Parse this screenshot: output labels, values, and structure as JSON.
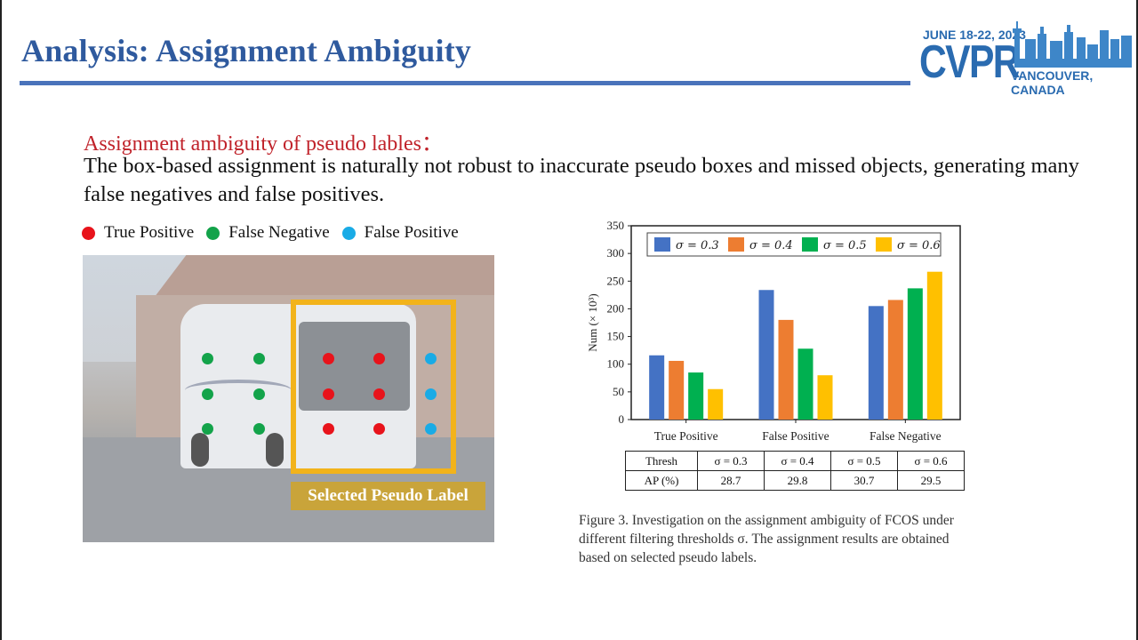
{
  "slide": {
    "title": "Analysis: Assignment Ambiguity",
    "accent_color": "#2f5a9e",
    "rule_color": "#4a73bb"
  },
  "logo": {
    "date": "JUNE 18-22, 2023",
    "name": "CVPR",
    "location": "VANCOUVER, CANADA",
    "color": "#2a6bb0"
  },
  "content": {
    "subheading": "Assignment ambiguity of pseudo lables：",
    "body": "The box-based assignment is naturally not robust to inaccurate pseudo boxes and missed objects, generating many false negatives and false positives."
  },
  "point_legend": [
    {
      "label": "True Positive",
      "color": "#e8131b"
    },
    {
      "label": "False Negative",
      "color": "#13a34a"
    },
    {
      "label": "False Positive",
      "color": "#19abe6"
    }
  ],
  "figure_image": {
    "box_label": "Selected Pseudo Label",
    "box_color": "#f2b31b",
    "points": {
      "true_positive": [
        [
          276,
          116
        ],
        [
          333,
          116
        ],
        [
          276,
          156
        ],
        [
          333,
          156
        ],
        [
          276,
          195
        ],
        [
          333,
          195
        ]
      ],
      "false_negative": [
        [
          140,
          116
        ],
        [
          198,
          116
        ],
        [
          140,
          156
        ],
        [
          198,
          156
        ],
        [
          140,
          195
        ],
        [
          198,
          195
        ]
      ],
      "false_positive": [
        [
          391,
          116
        ],
        [
          391,
          156
        ],
        [
          391,
          195
        ]
      ]
    }
  },
  "chart_data": {
    "type": "bar",
    "title": "",
    "xlabel": "",
    "ylabel": "Num (× 10³)",
    "ylim": [
      0,
      350
    ],
    "yticks": [
      0,
      50,
      100,
      150,
      200,
      250,
      300,
      350
    ],
    "categories": [
      "True Positive",
      "False Positive",
      "False Negative"
    ],
    "series": [
      {
        "name": "σ = 0.3",
        "color": "#4472c4",
        "values": [
          116,
          234,
          205
        ]
      },
      {
        "name": "σ = 0.4",
        "color": "#ed7d31",
        "values": [
          106,
          180,
          216
        ]
      },
      {
        "name": "σ = 0.5",
        "color": "#00b050",
        "values": [
          85,
          128,
          237
        ]
      },
      {
        "name": "σ = 0.6",
        "color": "#ffc000",
        "values": [
          55,
          80,
          267
        ]
      }
    ],
    "legend_position": "top-inside",
    "grid": false
  },
  "ap_table": {
    "header": [
      "Thresh",
      "σ = 0.3",
      "σ = 0.4",
      "σ = 0.5",
      "σ = 0.6"
    ],
    "row": [
      "AP (%)",
      "28.7",
      "29.8",
      "30.7",
      "29.5"
    ]
  },
  "caption": "Figure 3. Investigation on the assignment ambiguity of FCOS under different filtering thresholds σ. The assignment results are obtained based on selected pseudo labels."
}
